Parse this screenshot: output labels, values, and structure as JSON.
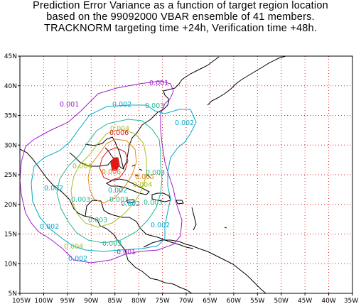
{
  "title": {
    "line1": "Prediction Error Variance as a function of target region location",
    "line2": "based on the 99092000 VBAR ensemble of 41 members.",
    "line3": "TRACKNORM targeting time +24h, Verification time +48h."
  },
  "map": {
    "lon_range": [
      -105,
      -35
    ],
    "lat_range": [
      5,
      45
    ],
    "x_ticks": [
      "105W",
      "100W",
      "95W",
      "90W",
      "85W",
      "80W",
      "75W",
      "70W",
      "65W",
      "60W",
      "55W",
      "50W",
      "45W",
      "40W",
      "35W"
    ],
    "y_ticks": [
      "5N",
      "10N",
      "15N",
      "20N",
      "25N",
      "30N",
      "35N",
      "40N",
      "45N"
    ],
    "grid": "dotted red every 5 degrees",
    "colors": {
      "grid": "#dd2222",
      "coast": "#000000",
      "c001": "#9a1fc8",
      "c002": "#00a8c8",
      "c003": "#22b893",
      "c004": "#a8c020",
      "c005": "#e08a10",
      "c006": "#e01818"
    },
    "contour_labels": [
      {
        "text": "0.001"
      },
      {
        "text": "0.001"
      },
      {
        "text": "0.001"
      },
      {
        "text": "0.002"
      },
      {
        "text": "0.003"
      },
      {
        "text": "0.002"
      },
      {
        "text": "0.004"
      },
      {
        "text": "0.006"
      },
      {
        "text": "0.004"
      },
      {
        "text": "0.002"
      },
      {
        "text": "0.006"
      },
      {
        "text": "0.005"
      },
      {
        "text": "0.003"
      },
      {
        "text": "0.004"
      },
      {
        "text": "0.002"
      },
      {
        "text": "0.003"
      },
      {
        "text": "0.003"
      },
      {
        "text": "0.003"
      },
      {
        "text": "0.002"
      },
      {
        "text": "0.002"
      },
      {
        "text": "0.003"
      },
      {
        "text": "0.004"
      },
      {
        "text": "0.003"
      },
      {
        "text": "0.002"
      },
      {
        "text": "0.002"
      }
    ]
  }
}
